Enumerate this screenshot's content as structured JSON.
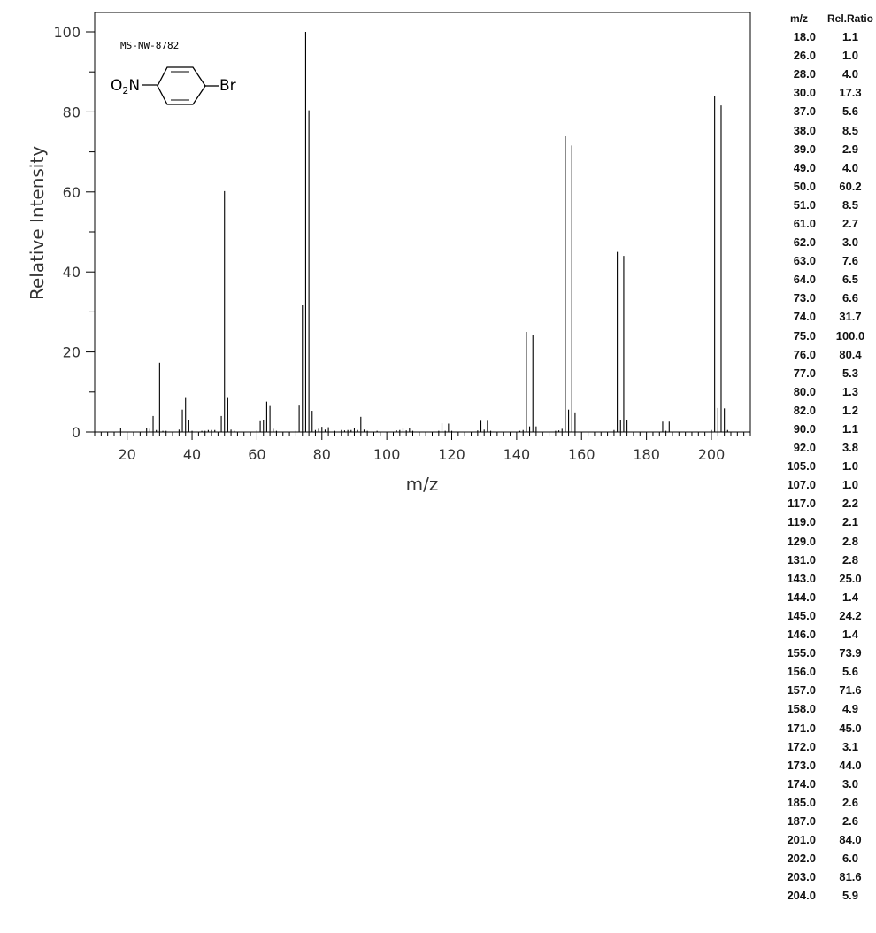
{
  "spectrum_id": "MS-NW-8782",
  "structure": {
    "left_group": "O",
    "left_subscript": "2",
    "left_suffix": "N",
    "right_group": "Br"
  },
  "table": {
    "headers": [
      "m/z",
      "Rel.Ratio"
    ],
    "rows": [
      [
        "18.0",
        "1.1"
      ],
      [
        "26.0",
        "1.0"
      ],
      [
        "28.0",
        "4.0"
      ],
      [
        "30.0",
        "17.3"
      ],
      [
        "37.0",
        "5.6"
      ],
      [
        "38.0",
        "8.5"
      ],
      [
        "39.0",
        "2.9"
      ],
      [
        "49.0",
        "4.0"
      ],
      [
        "50.0",
        "60.2"
      ],
      [
        "51.0",
        "8.5"
      ],
      [
        "61.0",
        "2.7"
      ],
      [
        "62.0",
        "3.0"
      ],
      [
        "63.0",
        "7.6"
      ],
      [
        "64.0",
        "6.5"
      ],
      [
        "73.0",
        "6.6"
      ],
      [
        "74.0",
        "31.7"
      ],
      [
        "75.0",
        "100.0"
      ],
      [
        "76.0",
        "80.4"
      ],
      [
        "77.0",
        "5.3"
      ],
      [
        "80.0",
        "1.3"
      ],
      [
        "82.0",
        "1.2"
      ],
      [
        "90.0",
        "1.1"
      ],
      [
        "92.0",
        "3.8"
      ],
      [
        "105.0",
        "1.0"
      ],
      [
        "107.0",
        "1.0"
      ],
      [
        "117.0",
        "2.2"
      ],
      [
        "119.0",
        "2.1"
      ],
      [
        "129.0",
        "2.8"
      ],
      [
        "131.0",
        "2.8"
      ],
      [
        "143.0",
        "25.0"
      ],
      [
        "144.0",
        "1.4"
      ],
      [
        "145.0",
        "24.2"
      ],
      [
        "146.0",
        "1.4"
      ],
      [
        "155.0",
        "73.9"
      ],
      [
        "156.0",
        "5.6"
      ],
      [
        "157.0",
        "71.6"
      ],
      [
        "158.0",
        "4.9"
      ],
      [
        "171.0",
        "45.0"
      ],
      [
        "172.0",
        "3.1"
      ],
      [
        "173.0",
        "44.0"
      ],
      [
        "174.0",
        "3.0"
      ],
      [
        "185.0",
        "2.6"
      ],
      [
        "187.0",
        "2.6"
      ],
      [
        "201.0",
        "84.0"
      ],
      [
        "202.0",
        "6.0"
      ],
      [
        "203.0",
        "81.6"
      ],
      [
        "204.0",
        "5.9"
      ]
    ]
  },
  "chart_data": {
    "type": "bar",
    "title": "",
    "xlabel": "m/z",
    "ylabel": "Relative Intensity",
    "xlim": [
      10,
      212
    ],
    "ylim": [
      0,
      104
    ],
    "xticks": [
      20,
      40,
      60,
      80,
      100,
      120,
      140,
      160,
      180,
      200
    ],
    "yticks": [
      0,
      20,
      40,
      60,
      80,
      100
    ],
    "grid": false,
    "legend": "none",
    "peaks": [
      [
        18,
        1.1
      ],
      [
        26,
        1.0
      ],
      [
        27,
        0.8
      ],
      [
        28,
        4.0
      ],
      [
        29,
        0.5
      ],
      [
        30,
        17.3
      ],
      [
        31,
        0.3
      ],
      [
        32,
        0.3
      ],
      [
        36,
        0.6
      ],
      [
        37,
        5.6
      ],
      [
        38,
        8.5
      ],
      [
        39,
        2.9
      ],
      [
        40,
        0.3
      ],
      [
        43,
        0.3
      ],
      [
        44,
        0.3
      ],
      [
        45,
        0.5
      ],
      [
        46,
        0.5
      ],
      [
        47,
        0.5
      ],
      [
        49,
        4.0
      ],
      [
        50,
        60.2
      ],
      [
        51,
        8.5
      ],
      [
        52,
        0.6
      ],
      [
        53,
        0.3
      ],
      [
        60,
        0.4
      ],
      [
        61,
        2.7
      ],
      [
        62,
        3.0
      ],
      [
        63,
        7.6
      ],
      [
        64,
        6.5
      ],
      [
        65,
        0.8
      ],
      [
        66,
        0.3
      ],
      [
        72,
        0.3
      ],
      [
        73,
        6.6
      ],
      [
        74,
        31.7
      ],
      [
        75,
        100.0
      ],
      [
        76,
        80.4
      ],
      [
        77,
        5.3
      ],
      [
        78,
        0.5
      ],
      [
        79,
        0.8
      ],
      [
        80,
        1.3
      ],
      [
        81,
        0.6
      ],
      [
        82,
        1.2
      ],
      [
        84,
        0.3
      ],
      [
        86,
        0.5
      ],
      [
        87,
        0.4
      ],
      [
        88,
        0.5
      ],
      [
        89,
        0.5
      ],
      [
        90,
        1.1
      ],
      [
        91,
        0.5
      ],
      [
        92,
        3.8
      ],
      [
        93,
        0.6
      ],
      [
        94,
        0.3
      ],
      [
        97,
        0.3
      ],
      [
        103,
        0.4
      ],
      [
        104,
        0.5
      ],
      [
        105,
        1.0
      ],
      [
        106,
        0.4
      ],
      [
        107,
        1.0
      ],
      [
        108,
        0.3
      ],
      [
        116,
        0.3
      ],
      [
        117,
        2.2
      ],
      [
        118,
        0.3
      ],
      [
        119,
        2.1
      ],
      [
        120,
        0.3
      ],
      [
        128,
        0.4
      ],
      [
        129,
        2.8
      ],
      [
        130,
        0.6
      ],
      [
        131,
        2.8
      ],
      [
        132,
        0.3
      ],
      [
        141,
        0.3
      ],
      [
        142,
        0.5
      ],
      [
        143,
        25.0
      ],
      [
        144,
        1.4
      ],
      [
        145,
        24.2
      ],
      [
        146,
        1.4
      ],
      [
        152,
        0.3
      ],
      [
        153,
        0.4
      ],
      [
        154,
        0.8
      ],
      [
        155,
        73.9
      ],
      [
        156,
        5.6
      ],
      [
        157,
        71.6
      ],
      [
        158,
        4.9
      ],
      [
        170,
        0.5
      ],
      [
        171,
        45.0
      ],
      [
        172,
        3.1
      ],
      [
        173,
        44.0
      ],
      [
        174,
        3.0
      ],
      [
        185,
        2.6
      ],
      [
        186,
        0.3
      ],
      [
        187,
        2.6
      ],
      [
        200,
        0.5
      ],
      [
        201,
        84.0
      ],
      [
        202,
        6.0
      ],
      [
        203,
        81.6
      ],
      [
        204,
        5.9
      ],
      [
        205,
        0.5
      ]
    ]
  }
}
